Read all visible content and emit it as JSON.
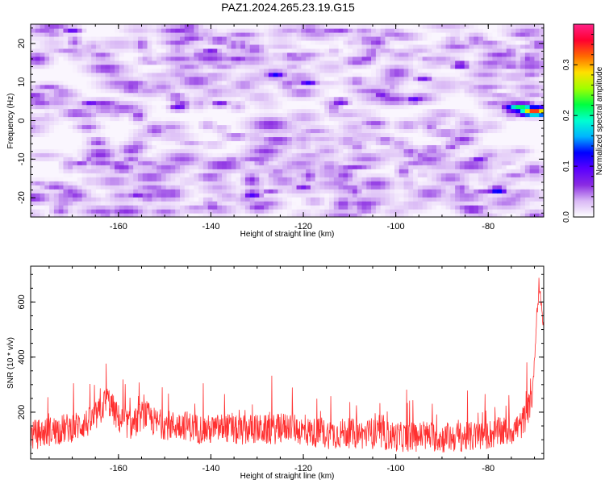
{
  "title": "PAZ1.2024.265.23.19.G15",
  "chart_data": [
    {
      "type": "heatmap",
      "xlabel": "Height of straight line (km)",
      "ylabel": "Frequency (Hz)",
      "xlim": [
        -179,
        -68
      ],
      "ylim": [
        -25,
        25
      ],
      "x_ticks": [
        -160,
        -140,
        -120,
        -100,
        -80
      ],
      "y_ticks": [
        -20,
        -10,
        0,
        10,
        20
      ],
      "colorbar": {
        "label": "Normalized spectral amplitude",
        "range": [
          0.0,
          0.38
        ],
        "ticks": [
          0.0,
          0.1,
          0.2,
          0.3
        ],
        "colors": [
          "#ffffff",
          "#d9b8f5",
          "#8a2be2",
          "#5a00ff",
          "#0000ff",
          "#00b4ff",
          "#00ffd0",
          "#00ff40",
          "#a0ff00",
          "#ffe000",
          "#ff6a00",
          "#ff0030",
          "#ff2288"
        ]
      },
      "hotspots": [
        {
          "x": -70,
          "y": 2.5,
          "value": 0.34
        },
        {
          "x": -73,
          "y": 3.5,
          "value": 0.22
        },
        {
          "x": -78,
          "y": -18,
          "value": 0.14
        },
        {
          "x": -126,
          "y": 12,
          "value": 0.12
        },
        {
          "x": -119,
          "y": 10,
          "value": 0.11
        },
        {
          "x": -131,
          "y": -19,
          "value": 0.11
        },
        {
          "x": -96,
          "y": 5.5,
          "value": 0.1
        },
        {
          "x": -86,
          "y": 14.5,
          "value": 0.1
        },
        {
          "x": -147,
          "y": 3.5,
          "value": 0.09
        },
        {
          "x": -166,
          "y": 4.5,
          "value": 0.09
        },
        {
          "x": -170,
          "y": 23.5,
          "value": 0.09
        },
        {
          "x": -112,
          "y": 5,
          "value": 0.09
        },
        {
          "x": -156,
          "y": -19,
          "value": 0.08
        },
        {
          "x": -103,
          "y": 7,
          "value": 0.08
        },
        {
          "x": -94,
          "y": 11,
          "value": 0.08
        },
        {
          "x": -82,
          "y": -10,
          "value": 0.08
        },
        {
          "x": -138,
          "y": 4.5,
          "value": 0.08
        },
        {
          "x": -120,
          "y": -17,
          "value": 0.08
        },
        {
          "x": -160,
          "y": -11.5,
          "value": 0.08
        },
        {
          "x": -140,
          "y": 18,
          "value": 0.08
        }
      ]
    },
    {
      "type": "line",
      "xlabel": "Height of straight line (km)",
      "ylabel": "SNR (10 * v/v)",
      "xlim": [
        -179,
        -68
      ],
      "ylim": [
        30,
        730
      ],
      "x_ticks": [
        -160,
        -140,
        -120,
        -100,
        -80
      ],
      "y_ticks": [
        200,
        400,
        600
      ],
      "series": [
        {
          "color": "#ff3030",
          "x": [
            -179,
            -175,
            -170,
            -166,
            -164,
            -162.5,
            -160,
            -157,
            -154.5,
            -152,
            -148,
            -146,
            -143,
            -140,
            -137,
            -134,
            -131,
            -128,
            -125,
            -123,
            -120,
            -117,
            -114,
            -111,
            -108,
            -105,
            -102,
            -99,
            -96,
            -93,
            -90,
            -87,
            -84,
            -81,
            -78,
            -75,
            -73,
            -71.5,
            -70.5,
            -70,
            -69.5,
            -69,
            -68.5,
            -68.2
          ],
          "y": [
            115,
            130,
            145,
            165,
            200,
            250,
            175,
            150,
            195,
            160,
            150,
            155,
            140,
            135,
            145,
            130,
            140,
            135,
            140,
            150,
            130,
            125,
            120,
            125,
            120,
            120,
            115,
            110,
            110,
            115,
            105,
            110,
            110,
            115,
            125,
            135,
            150,
            200,
            260,
            380,
            560,
            640,
            600,
            520
          ],
          "noise_amplitude": 110,
          "noise_min": 40
        }
      ]
    }
  ]
}
